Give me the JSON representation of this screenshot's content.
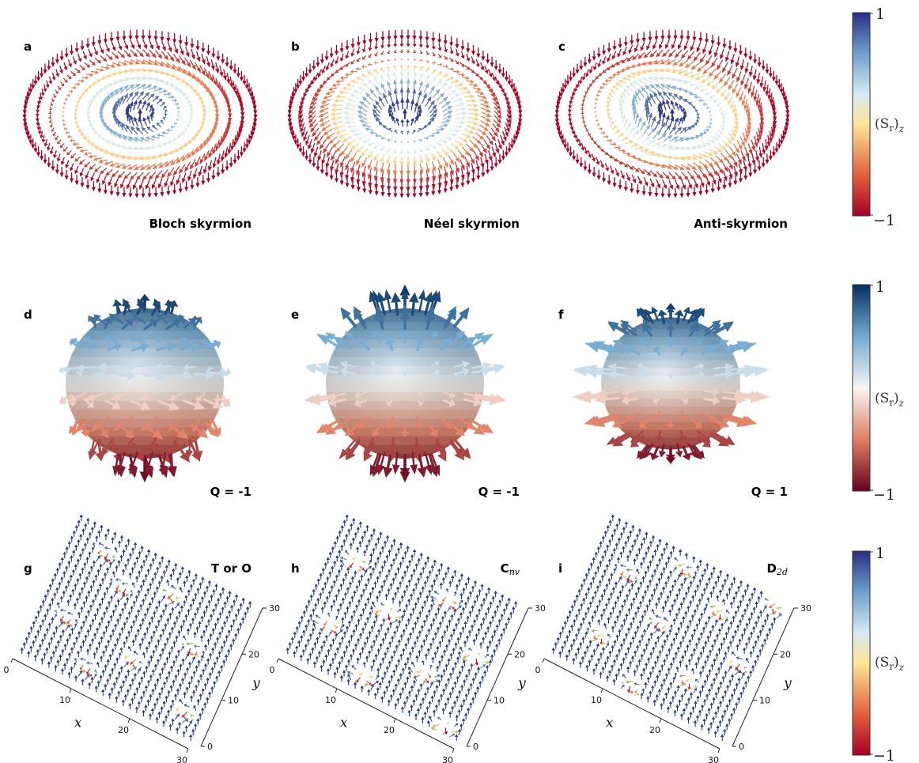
{
  "panels": [
    {
      "id": "a",
      "label": "a",
      "title": "Bloch skyrmion",
      "kind": "bloch"
    },
    {
      "id": "b",
      "label": "b",
      "title": "Néel skyrmion",
      "kind": "neel"
    },
    {
      "id": "c",
      "label": "c",
      "title": "Anti-skyrmion",
      "kind": "anti"
    },
    {
      "id": "d",
      "label": "d",
      "title": "Q = -1",
      "kind": "sphere-bloch"
    },
    {
      "id": "e",
      "label": "e",
      "title": "Q = -1",
      "kind": "sphere-neel"
    },
    {
      "id": "f",
      "label": "f",
      "title": "Q = 1",
      "kind": "sphere-anti"
    },
    {
      "id": "g",
      "label": "g",
      "title": "T or O",
      "title_sub": "",
      "kind": "lattice"
    },
    {
      "id": "h",
      "label": "h",
      "title": "C",
      "title_sub": "nv",
      "kind": "lattice"
    },
    {
      "id": "i",
      "label": "i",
      "title": "D",
      "title_sub": "2d",
      "kind": "lattice"
    }
  ],
  "colorbars": [
    {
      "id": "cb1",
      "max_label": "1",
      "min_label": "−1",
      "quantity": "(S",
      "quantity_sub": "r",
      "quantity_end": ")",
      "quantity_z": "z",
      "scheme": "rdylbu"
    },
    {
      "id": "cb2",
      "max_label": "1",
      "min_label": "−1",
      "quantity": "(S",
      "quantity_sub": "r",
      "quantity_end": ")",
      "quantity_z": "z",
      "scheme": "rdbu"
    },
    {
      "id": "cb3",
      "max_label": "1",
      "min_label": "−1",
      "quantity": "(S",
      "quantity_sub": "r",
      "quantity_end": ")",
      "quantity_z": "z",
      "scheme": "rdylbu"
    }
  ],
  "lattice_axes": {
    "x_label": "x",
    "y_label": "y",
    "x_ticks": [
      "0",
      "10",
      "20",
      "30"
    ],
    "y_ticks": [
      "0",
      "10",
      "20",
      "30"
    ]
  },
  "colors": {
    "blue": "#2b3f8f",
    "light_blue": "#a9c9e6",
    "white": "#f5f5f0",
    "yellow": "#f2df7a",
    "red": "#b01d2c",
    "dark_red": "#7a0d1e"
  }
}
